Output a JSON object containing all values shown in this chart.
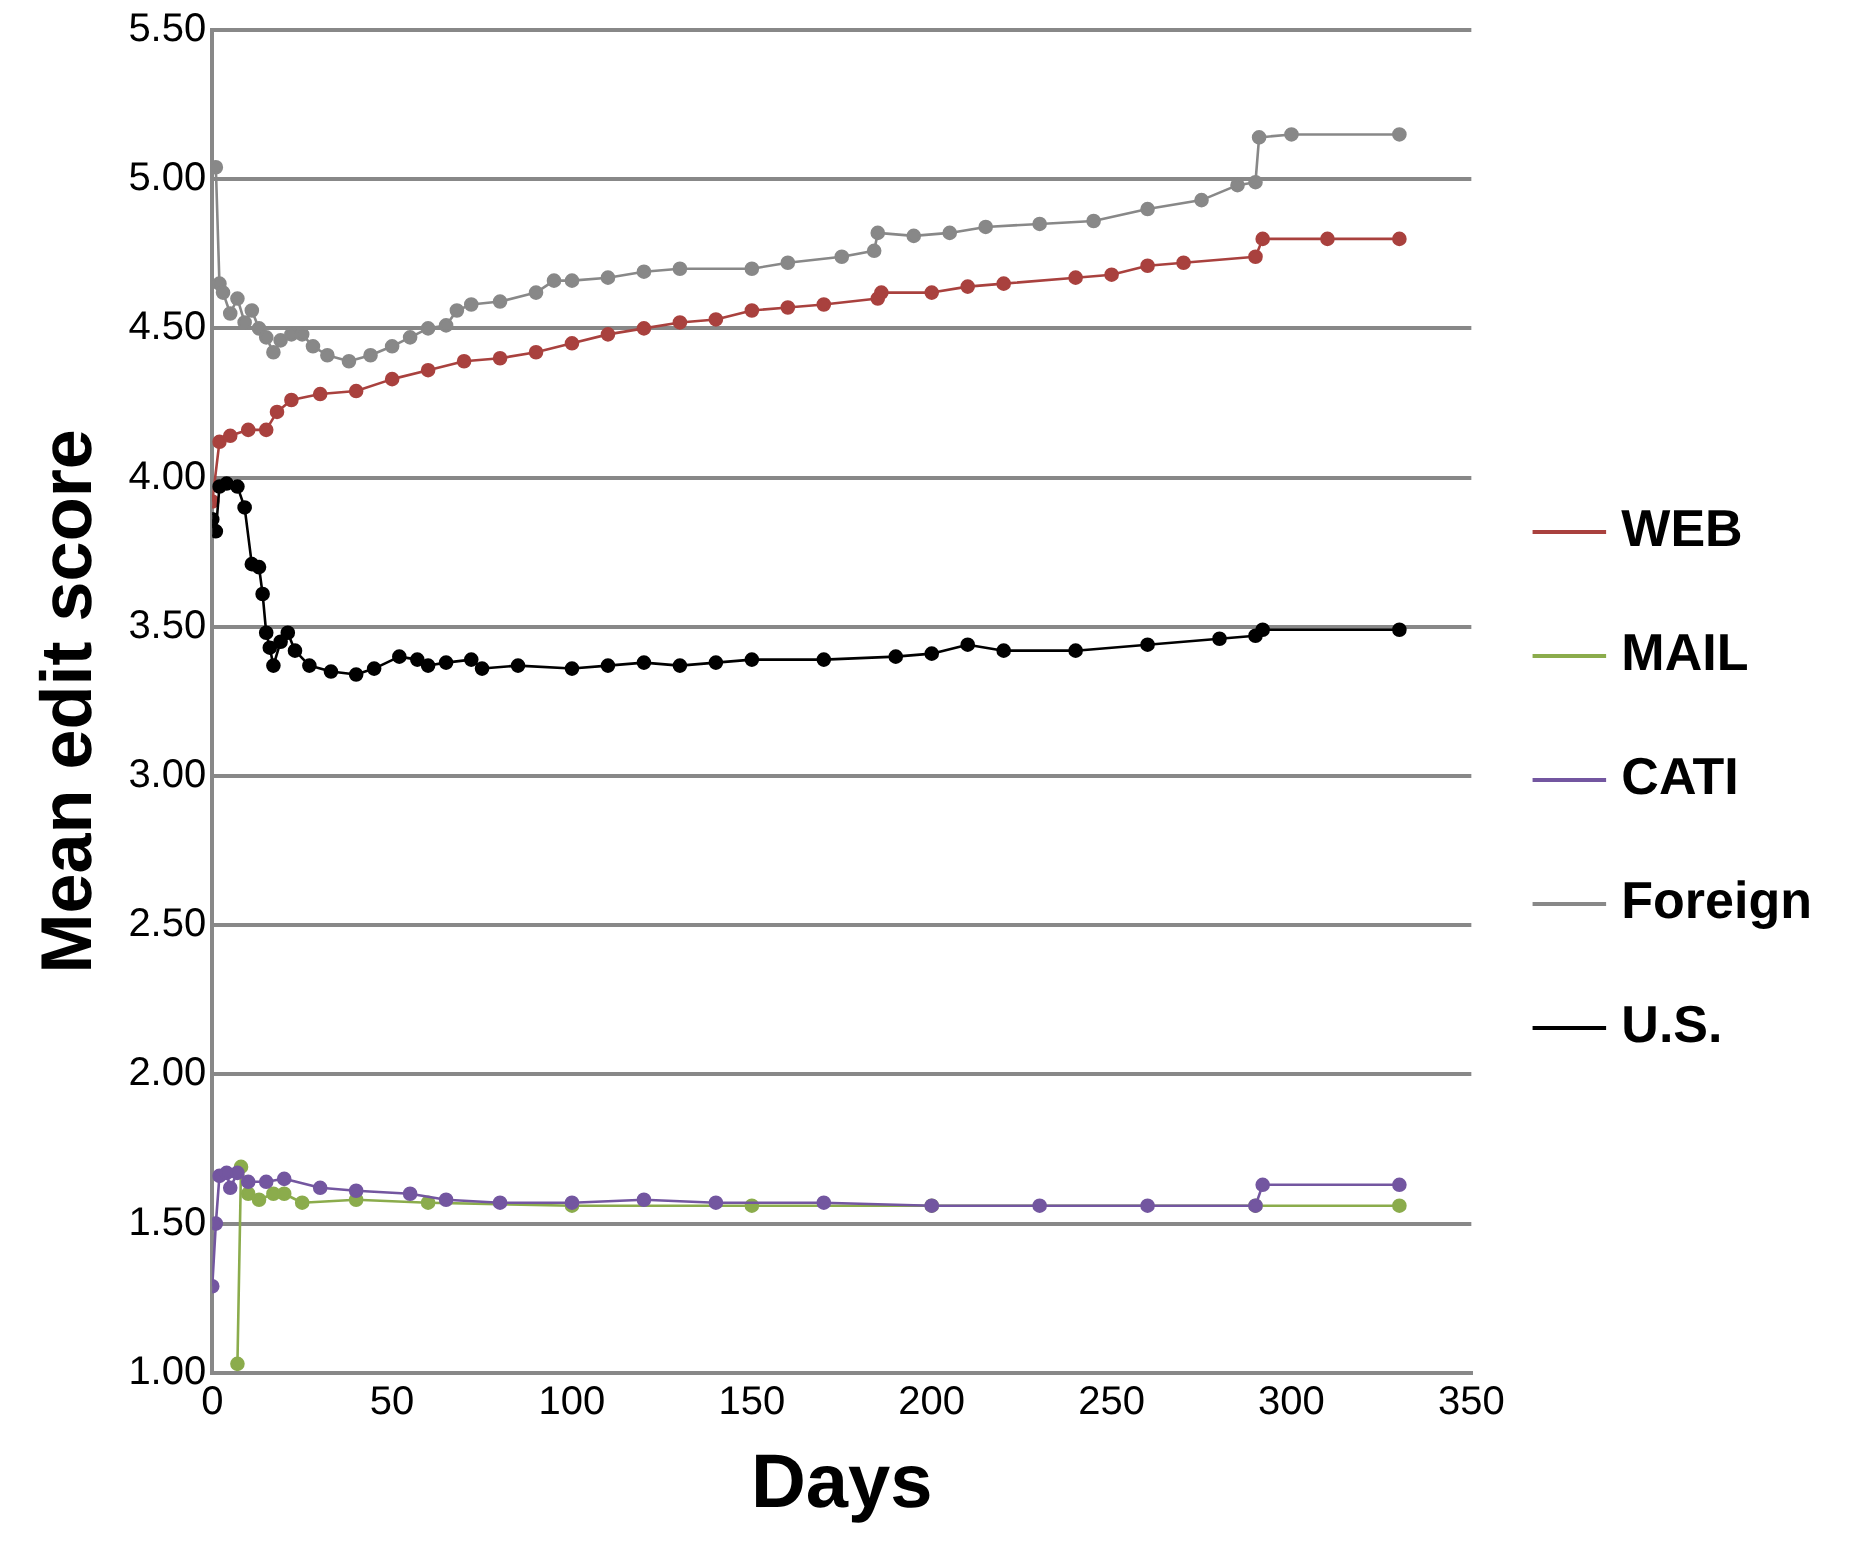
{
  "chart_data": {
    "type": "line",
    "xlabel": "Days",
    "ylabel": "Mean edit score",
    "xlim": [
      0,
      350
    ],
    "xticks": [
      0,
      50,
      100,
      150,
      200,
      250,
      300,
      350
    ],
    "ylim": [
      1,
      5.5
    ],
    "yticks": [
      {
        "value": 1,
        "label": "1.00"
      },
      {
        "value": 1.5,
        "label": "1.50"
      },
      {
        "value": 2,
        "label": "2.00"
      },
      {
        "value": 2.5,
        "label": "2.50"
      },
      {
        "value": 3,
        "label": "3.00"
      },
      {
        "value": 3.5,
        "label": "3.50"
      },
      {
        "value": 4,
        "label": "4.00"
      },
      {
        "value": 4.5,
        "label": "4.50"
      },
      {
        "value": 5,
        "label": "5.00"
      },
      {
        "value": 5.5,
        "label": "5.50"
      }
    ],
    "grid": "y",
    "legend": "right",
    "marker": "circle",
    "line_style": "solid",
    "series": [
      {
        "name": "WEB",
        "color": "#a9413e",
        "x": [
          0,
          2,
          5,
          10,
          15,
          18,
          22,
          30,
          40,
          50,
          60,
          70,
          80,
          90,
          100,
          110,
          120,
          130,
          140,
          150,
          160,
          170,
          185,
          186,
          200,
          210,
          220,
          240,
          250,
          260,
          270,
          290,
          292,
          310,
          330
        ],
        "values": [
          3.92,
          4.12,
          4.14,
          4.16,
          4.16,
          4.22,
          4.26,
          4.28,
          4.29,
          4.33,
          4.36,
          4.39,
          4.4,
          4.42,
          4.45,
          4.48,
          4.5,
          4.52,
          4.53,
          4.56,
          4.57,
          4.58,
          4.6,
          4.62,
          4.62,
          4.64,
          4.65,
          4.67,
          4.68,
          4.71,
          4.72,
          4.74,
          4.8,
          4.8,
          4.8
        ]
      },
      {
        "name": "MAIL",
        "color": "#8bac4c",
        "x": [
          7,
          8,
          10,
          13,
          17,
          20,
          25,
          40,
          60,
          100,
          150,
          200,
          290,
          330
        ],
        "values": [
          1.03,
          1.69,
          1.6,
          1.58,
          1.6,
          1.6,
          1.57,
          1.58,
          1.57,
          1.56,
          1.56,
          1.56,
          1.56,
          1.56
        ]
      },
      {
        "name": "CATI",
        "color": "#7356a0",
        "x": [
          0,
          1,
          2,
          4,
          5,
          7,
          10,
          15,
          20,
          30,
          40,
          55,
          65,
          80,
          100,
          120,
          140,
          170,
          200,
          230,
          260,
          290,
          292,
          330
        ],
        "values": [
          1.29,
          1.5,
          1.66,
          1.67,
          1.62,
          1.67,
          1.64,
          1.64,
          1.65,
          1.62,
          1.61,
          1.6,
          1.58,
          1.57,
          1.57,
          1.58,
          1.57,
          1.57,
          1.56,
          1.56,
          1.56,
          1.56,
          1.63,
          1.63
        ]
      },
      {
        "name": "Foreign",
        "color": "#888888",
        "x": [
          1,
          2,
          3,
          5,
          7,
          9,
          11,
          13,
          15,
          17,
          19,
          22,
          25,
          28,
          32,
          38,
          44,
          50,
          55,
          60,
          65,
          68,
          72,
          80,
          90,
          95,
          100,
          110,
          120,
          130,
          150,
          160,
          175,
          184,
          185,
          195,
          205,
          215,
          230,
          245,
          260,
          275,
          285,
          290,
          291,
          300,
          330
        ],
        "values": [
          5.04,
          4.65,
          4.62,
          4.55,
          4.6,
          4.52,
          4.56,
          4.5,
          4.47,
          4.42,
          4.46,
          4.48,
          4.48,
          4.44,
          4.41,
          4.39,
          4.41,
          4.44,
          4.47,
          4.5,
          4.51,
          4.56,
          4.58,
          4.59,
          4.62,
          4.66,
          4.66,
          4.67,
          4.69,
          4.7,
          4.7,
          4.72,
          4.74,
          4.76,
          4.82,
          4.81,
          4.82,
          4.84,
          4.85,
          4.86,
          4.9,
          4.93,
          4.98,
          4.99,
          5.14,
          5.15,
          5.15
        ]
      },
      {
        "name": "U.S.",
        "color": "#000000",
        "x": [
          0,
          1,
          2,
          4,
          7,
          9,
          11,
          13,
          14,
          15,
          16,
          17,
          19,
          21,
          23,
          27,
          33,
          40,
          45,
          52,
          57,
          60,
          65,
          72,
          75,
          85,
          100,
          110,
          120,
          130,
          140,
          150,
          170,
          190,
          200,
          210,
          220,
          240,
          260,
          280,
          290,
          292,
          330
        ],
        "values": [
          3.86,
          3.82,
          3.97,
          3.98,
          3.97,
          3.9,
          3.71,
          3.7,
          3.61,
          3.48,
          3.43,
          3.37,
          3.45,
          3.48,
          3.42,
          3.37,
          3.35,
          3.34,
          3.36,
          3.4,
          3.39,
          3.37,
          3.38,
          3.39,
          3.36,
          3.37,
          3.36,
          3.37,
          3.38,
          3.37,
          3.38,
          3.39,
          3.39,
          3.4,
          3.41,
          3.44,
          3.42,
          3.42,
          3.44,
          3.46,
          3.47,
          3.49,
          3.49
        ]
      }
    ]
  }
}
